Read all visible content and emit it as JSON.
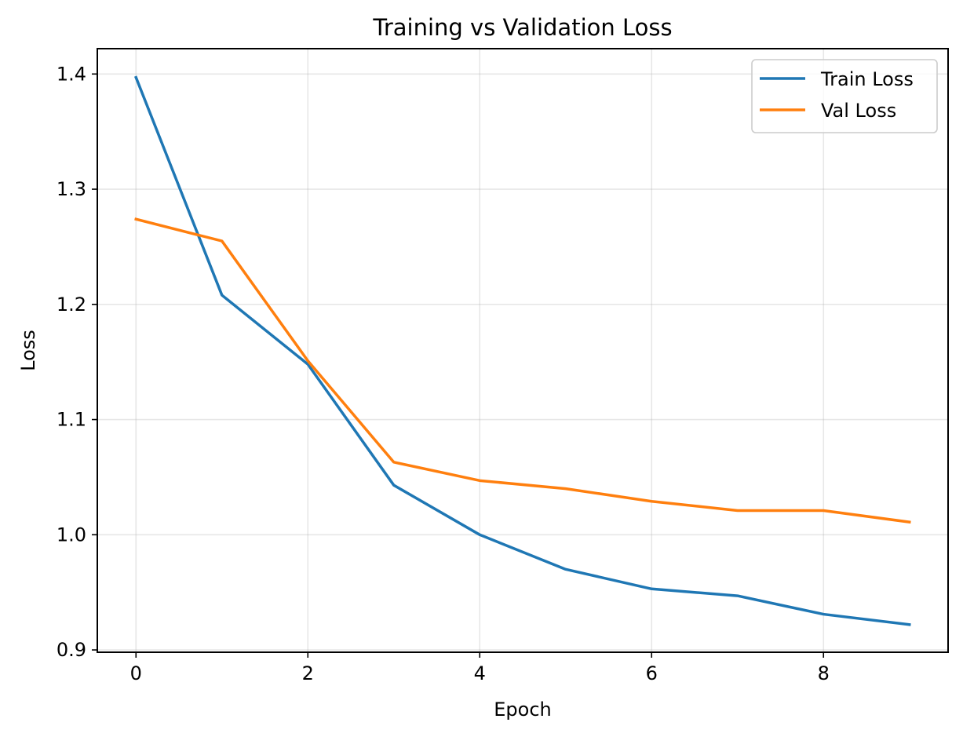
{
  "chart_data": {
    "type": "line",
    "title": "Training vs Validation Loss",
    "xlabel": "Epoch",
    "ylabel": "Loss",
    "x": [
      0,
      1,
      2,
      3,
      4,
      5,
      6,
      7,
      8,
      9
    ],
    "xlim": [
      -0.45,
      9.45
    ],
    "ylim": [
      0.898,
      1.422
    ],
    "xticks": [
      0,
      2,
      4,
      6,
      8
    ],
    "yticks": [
      0.9,
      1.0,
      1.1,
      1.2,
      1.3,
      1.4
    ],
    "xtick_labels": [
      "0",
      "2",
      "4",
      "6",
      "8"
    ],
    "ytick_labels": [
      "0.9",
      "1.0",
      "1.1",
      "1.2",
      "1.3",
      "1.4"
    ],
    "grid": true,
    "legend_position": "upper right",
    "series": [
      {
        "name": "Train Loss",
        "color": "#1f77b4",
        "values": [
          1.397,
          1.208,
          1.148,
          1.043,
          1.0,
          0.97,
          0.953,
          0.947,
          0.931,
          0.922
        ]
      },
      {
        "name": "Val Loss",
        "color": "#ff7f0e",
        "values": [
          1.274,
          1.255,
          1.151,
          1.063,
          1.047,
          1.04,
          1.029,
          1.021,
          1.021,
          1.011
        ]
      }
    ]
  }
}
